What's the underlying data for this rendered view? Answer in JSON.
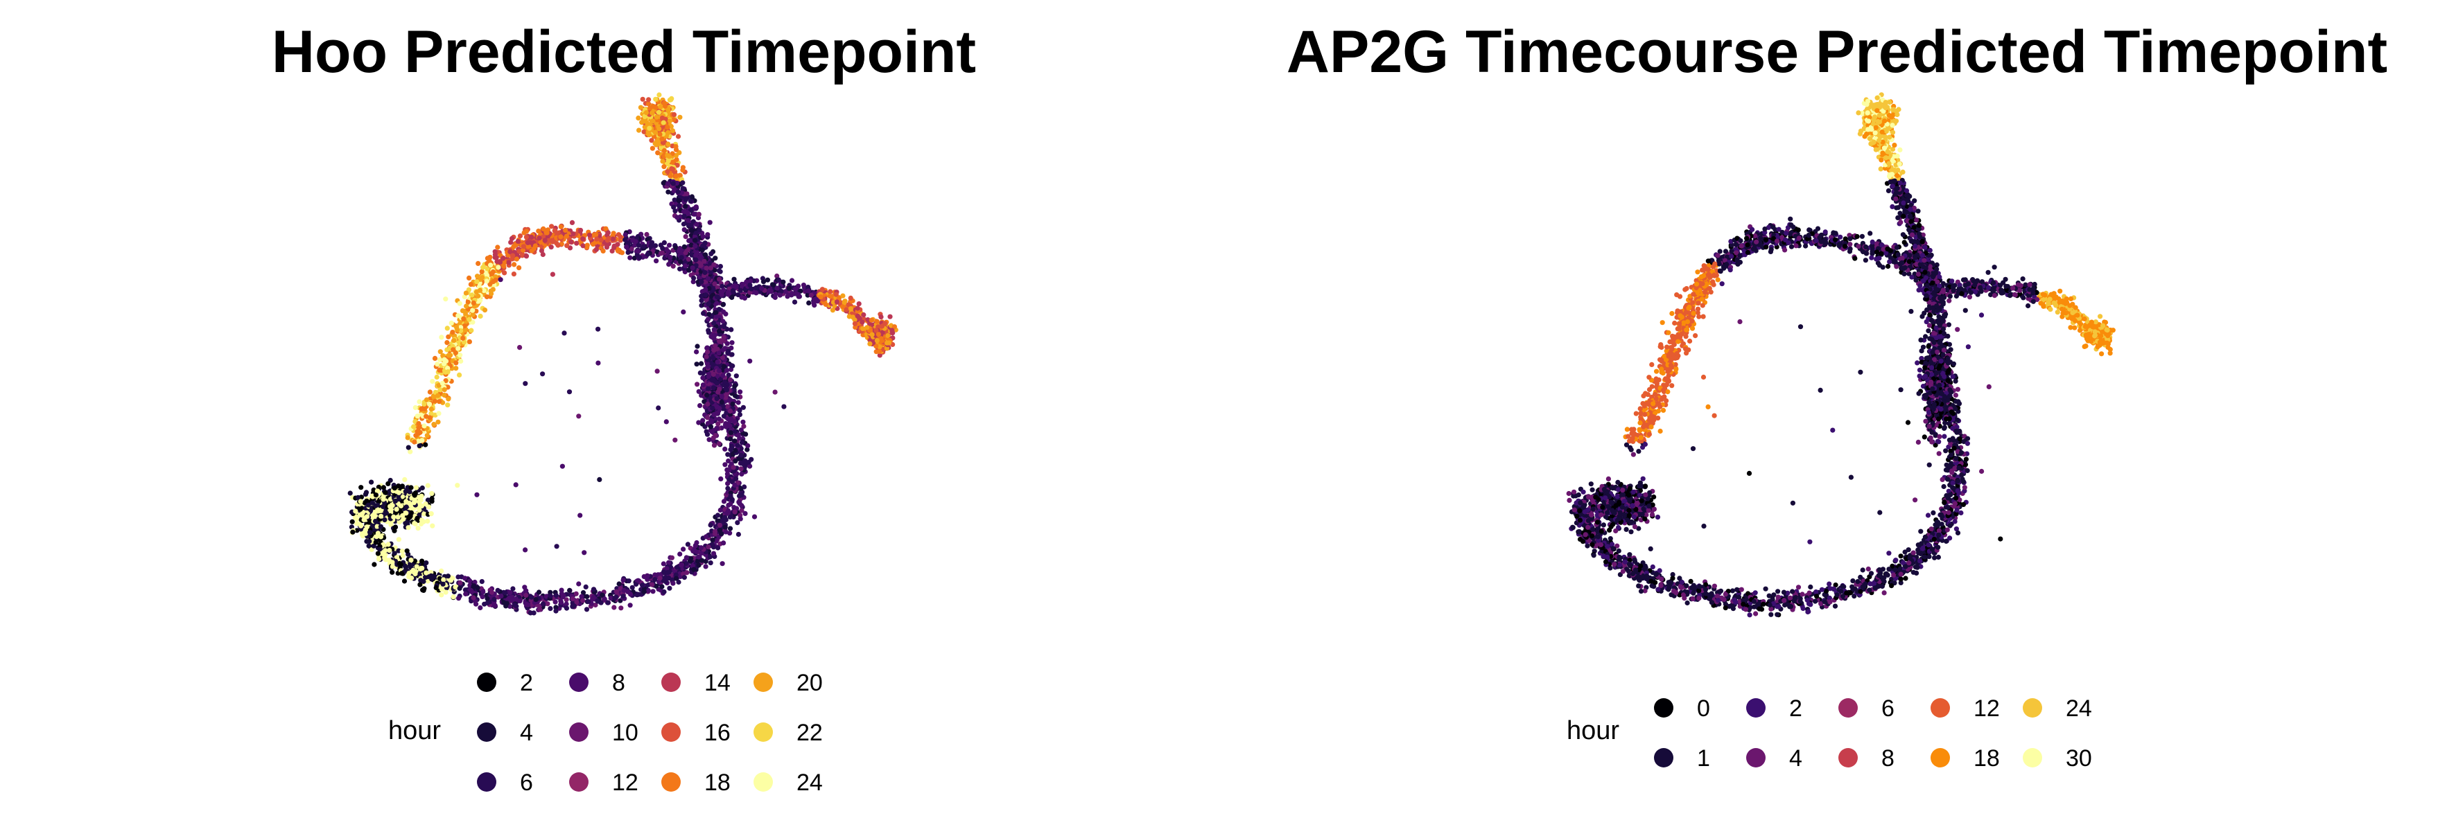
{
  "chart_data": [
    {
      "type": "scatter",
      "title": "Hoo Predicted Timepoint",
      "legend_title": "hour",
      "legend_placement": "bottom",
      "grid": false,
      "axes_visible": false,
      "categories": [
        {
          "label": "2",
          "color": "#000004"
        },
        {
          "label": "4",
          "color": "#160B39"
        },
        {
          "label": "6",
          "color": "#280B54"
        },
        {
          "label": "8",
          "color": "#4A0C6B"
        },
        {
          "label": "10",
          "color": "#6B176E"
        },
        {
          "label": "12",
          "color": "#932667"
        },
        {
          "label": "14",
          "color": "#BB3754"
        },
        {
          "label": "16",
          "color": "#DD513A"
        },
        {
          "label": "18",
          "color": "#F37819"
        },
        {
          "label": "20",
          "color": "#F5A21B"
        },
        {
          "label": "22",
          "color": "#F6D746"
        },
        {
          "label": "24",
          "color": "#FCFFA4"
        }
      ]
    },
    {
      "type": "scatter",
      "title": "AP2G Timecourse Predicted Timepoint",
      "legend_title": "hour",
      "legend_placement": "bottom",
      "grid": false,
      "axes_visible": false,
      "categories": [
        {
          "label": "0",
          "color": "#000004"
        },
        {
          "label": "1",
          "color": "#160B39"
        },
        {
          "label": "2",
          "color": "#3B0F70"
        },
        {
          "label": "4",
          "color": "#6B176E"
        },
        {
          "label": "6",
          "color": "#9C2A63"
        },
        {
          "label": "8",
          "color": "#C73E4C"
        },
        {
          "label": "12",
          "color": "#E55C30"
        },
        {
          "label": "18",
          "color": "#F98C0A"
        },
        {
          "label": "24",
          "color": "#F5C53A"
        },
        {
          "label": "30",
          "color": "#FCFFA4"
        }
      ]
    }
  ]
}
